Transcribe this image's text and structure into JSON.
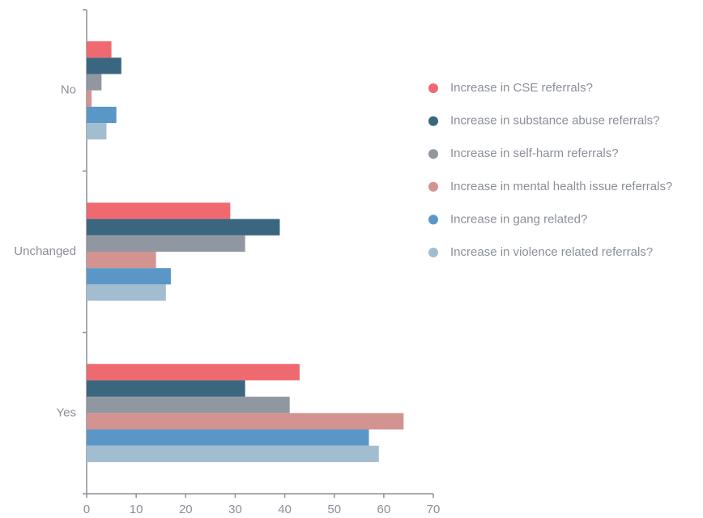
{
  "chart_data": {
    "type": "hbar",
    "categories": [
      "No",
      "Unchanged",
      "Yes"
    ],
    "series": [
      {
        "name": "Increase in CSE referrals?",
        "color": "#ef6a70",
        "values": [
          5,
          29,
          43
        ]
      },
      {
        "name": "Increase in substance abuse referrals?",
        "color": "#3b6680",
        "values": [
          7,
          39,
          32
        ]
      },
      {
        "name": "Increase in self-harm referrals?",
        "color": "#9197a0",
        "values": [
          3,
          32,
          41
        ]
      },
      {
        "name": "Increase in mental health issue referrals?",
        "color": "#d39391",
        "values": [
          1,
          14,
          64
        ]
      },
      {
        "name": "Increase in gang related?",
        "color": "#5b97c6",
        "values": [
          6,
          17,
          57
        ]
      },
      {
        "name": "Increase in violence related referrals?",
        "color": "#a2bdd0",
        "values": [
          4,
          16,
          59
        ]
      }
    ],
    "xlim": [
      0,
      70
    ],
    "xticks": [
      0,
      10,
      20,
      30,
      40,
      50,
      60,
      70
    ],
    "legend": "right"
  }
}
